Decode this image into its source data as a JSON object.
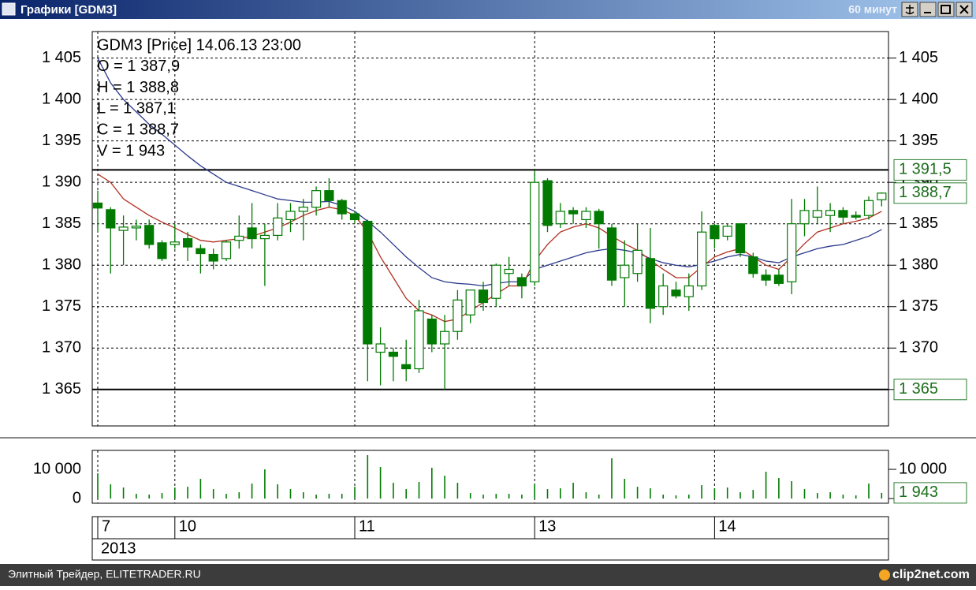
{
  "window": {
    "title": "Графики [GDM3]",
    "timeframe": "60 минут",
    "footer": "Элитный Трейдер, ELITETRADER.RU",
    "watermark": "clip2net.com"
  },
  "chart_data": [
    {
      "type": "candlestick",
      "info": [
        "GDM3 [Price] 14.06.13 23:00",
        "O = 1 387,9",
        "H = 1 388,8",
        "L = 1 387,1",
        "C = 1 388,7",
        "V = 1 943"
      ],
      "categories": [
        "7",
        null,
        null,
        null,
        null,
        null,
        "10",
        null,
        null,
        null,
        null,
        null,
        null,
        null,
        null,
        null,
        null,
        null,
        null,
        null,
        "11",
        null,
        null,
        null,
        null,
        null,
        null,
        null,
        null,
        null,
        null,
        null,
        null,
        null,
        "13",
        null,
        null,
        null,
        null,
        null,
        null,
        null,
        null,
        null,
        null,
        null,
        null,
        null,
        "14",
        null,
        null,
        null,
        null,
        null,
        null,
        null,
        null,
        null,
        null,
        null,
        null,
        null
      ],
      "year": "2013",
      "open": [
        1387.5,
        1386.7,
        1384.2,
        1384.5,
        1384.8,
        1382.7,
        1382.5,
        1383.2,
        1382,
        1381.3,
        1380.8,
        1383,
        1384.5,
        1383.2,
        1383.6,
        1385.5,
        1386.5,
        1387,
        1389,
        1387.8,
        1386.2,
        1385.3,
        1369.5,
        1369.5,
        1368,
        1367.5,
        1373.5,
        1370.5,
        1372,
        1374,
        1377,
        1376,
        1379,
        1378.5,
        1378,
        1390.2,
        1385,
        1386.6,
        1385.5,
        1386.5,
        1384.5,
        1378.5,
        1379,
        1380.8,
        1375,
        1377,
        1376.2,
        1377.5,
        1384.8,
        1383.5,
        1385,
        1381,
        1378.8,
        1378.8,
        1378,
        1385,
        1385.8,
        1386,
        1386.6,
        1386,
        1386,
        1387.9
      ],
      "high": [
        1389,
        1387,
        1386,
        1385.5,
        1385.5,
        1383,
        1385,
        1384,
        1382.5,
        1382,
        1383,
        1386,
        1387.5,
        1385,
        1387.5,
        1387.5,
        1388,
        1389.5,
        1390.5,
        1388,
        1386.5,
        1385.5,
        1372.5,
        1370,
        1371,
        1375.8,
        1374,
        1374,
        1377,
        1377,
        1378,
        1380.2,
        1381,
        1379,
        1391.5,
        1390.5,
        1387.5,
        1387,
        1387,
        1386.8,
        1385,
        1383,
        1385,
        1384.5,
        1379,
        1378,
        1379,
        1386.5,
        1385,
        1385,
        1385,
        1381.5,
        1379.5,
        1379.5,
        1388,
        1388,
        1389.5,
        1387.5,
        1387,
        1386.5,
        1388.3,
        1388.8
      ],
      "low": [
        1384,
        1379,
        1380,
        1383,
        1382,
        1380.5,
        1382,
        1380.5,
        1379,
        1379.5,
        1380.5,
        1382,
        1382,
        1377.5,
        1383,
        1384,
        1383,
        1386,
        1387,
        1385.5,
        1385,
        1366,
        1365.5,
        1366,
        1366,
        1367,
        1369.5,
        1365,
        1371,
        1373,
        1374.5,
        1375,
        1377.5,
        1376,
        1377.5,
        1384,
        1384.5,
        1385,
        1384.5,
        1382,
        1377.5,
        1375,
        1378,
        1373,
        1374,
        1376,
        1374.5,
        1377,
        1382,
        1383,
        1381,
        1378.5,
        1377.5,
        1377.5,
        1376.5,
        1383.5,
        1385,
        1384,
        1385,
        1385.5,
        1385.5,
        1387.1
      ],
      "close": [
        1386.9,
        1384.5,
        1384.6,
        1384.7,
        1382.5,
        1380.8,
        1382.8,
        1382.2,
        1381.4,
        1380.5,
        1382.8,
        1383.5,
        1383.2,
        1383.6,
        1385.7,
        1386.5,
        1387,
        1389,
        1387.8,
        1386.2,
        1385.5,
        1370.5,
        1370.5,
        1369,
        1367.5,
        1374.5,
        1370.5,
        1372,
        1375.8,
        1377,
        1375.5,
        1380,
        1379.5,
        1377.5,
        1390,
        1384.8,
        1386.5,
        1386.2,
        1386.5,
        1385,
        1378.2,
        1380,
        1381.8,
        1374.8,
        1377.5,
        1376.3,
        1377.5,
        1384,
        1383.2,
        1384.7,
        1381.5,
        1379,
        1378.2,
        1377.8,
        1385,
        1386.6,
        1386.6,
        1386.6,
        1385.8,
        1385.8,
        1387.8,
        1388.7
      ],
      "up_color": "#ffffff",
      "down_color": "#007a00",
      "candle_color": "#007a00",
      "lines": [
        {
          "color": "#2b3a8c",
          "values": [
            1405,
            1402,
            1400,
            1398.5,
            1397,
            1395.8,
            1394.5,
            1393.2,
            1392,
            1391,
            1390,
            1389.5,
            1389,
            1388.5,
            1388,
            1387.8,
            1387.6,
            1387.6,
            1387.7,
            1387.2,
            1386.5,
            1385.3,
            1384,
            1382.5,
            1381,
            1379.7,
            1378.5,
            1378,
            1377.8,
            1377.7,
            1377.5,
            1377.8,
            1378,
            1378,
            1379.5,
            1380,
            1380.5,
            1381,
            1381.5,
            1381.8,
            1382,
            1381.8,
            1381.5,
            1380.8,
            1380.3,
            1380,
            1379.8,
            1380.1,
            1380.5,
            1381,
            1381.3,
            1381,
            1380.5,
            1380.3,
            1381,
            1381.5,
            1382,
            1382.3,
            1382.5,
            1383,
            1383.5,
            1384.3
          ]
        },
        {
          "color": "#b03020",
          "values": [
            1391,
            1390,
            1388,
            1387,
            1386,
            1385.2,
            1384.5,
            1383.7,
            1383,
            1382.8,
            1383,
            1383.2,
            1383.5,
            1384,
            1384.5,
            1385.2,
            1386,
            1386.6,
            1387,
            1386.7,
            1386,
            1384,
            1381,
            1378.5,
            1376,
            1374.5,
            1374,
            1373.2,
            1373.5,
            1374.5,
            1375.5,
            1376.5,
            1377.5,
            1377.5,
            1380.5,
            1382.5,
            1384,
            1384.6,
            1385,
            1384.5,
            1383.5,
            1382.6,
            1381.8,
            1380.6,
            1379.5,
            1378.5,
            1378.5,
            1379.8,
            1381,
            1381.6,
            1382,
            1381,
            1380,
            1379.5,
            1381,
            1382.6,
            1384,
            1384.5,
            1385,
            1385.3,
            1385.7,
            1386.5
          ]
        }
      ],
      "hlines": [
        1391.5,
        1365
      ],
      "price_labels": [
        {
          "value": 1391.5,
          "label": "1 391,5"
        },
        {
          "value": 1388.7,
          "label": "1 388,7"
        },
        {
          "value": 1365,
          "label": "1 365"
        }
      ],
      "ylim": [
        1360.6,
        1408.2
      ],
      "yticks": [
        {
          "value": 1365,
          "label": "1 365"
        },
        {
          "value": 1370,
          "label": "1 370"
        },
        {
          "value": 1375,
          "label": "1 375"
        },
        {
          "value": 1380,
          "label": "1 380"
        },
        {
          "value": 1385,
          "label": "1 385"
        },
        {
          "value": 1390,
          "label": "1 390"
        },
        {
          "value": 1395,
          "label": "1 395"
        },
        {
          "value": 1400,
          "label": "1 400"
        },
        {
          "value": 1405,
          "label": "1 405"
        }
      ],
      "grid": true
    },
    {
      "type": "bar",
      "values": [
        8650,
        4870,
        3780,
        1620,
        1350,
        1890,
        3780,
        4050,
        6760,
        3240,
        1620,
        2160,
        5140,
        10000,
        4870,
        3240,
        2160,
        1350,
        1620,
        1620,
        4050,
        14870,
        10810,
        5410,
        3240,
        5680,
        10540,
        7840,
        5410,
        1890,
        1350,
        1620,
        1620,
        1350,
        4870,
        3240,
        3510,
        5410,
        2160,
        1350,
        13790,
        6760,
        4050,
        3510,
        1350,
        1080,
        1350,
        4600,
        3510,
        3780,
        2160,
        2970,
        9190,
        7030,
        5950,
        3240,
        1890,
        2160,
        1350,
        1080,
        5140,
        1943
      ],
      "color": "#007a00",
      "value_box": {
        "value": 1943,
        "label": "1 943"
      },
      "ylim": [
        -1600,
        16500
      ],
      "yticks": [
        0,
        {
          "value": 10000,
          "label": "10 000"
        }
      ]
    }
  ]
}
